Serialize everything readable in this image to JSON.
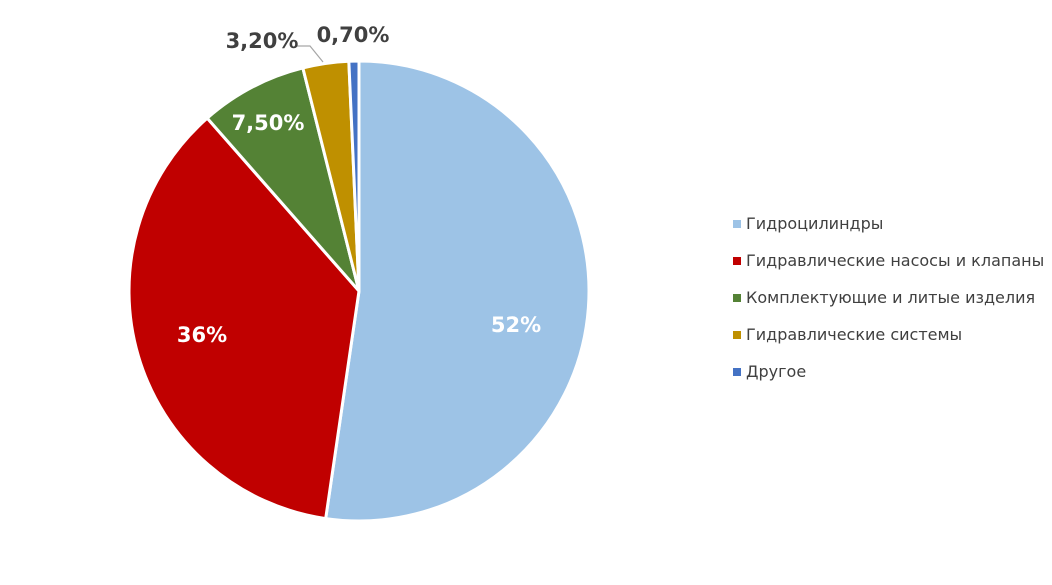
{
  "chart_data": {
    "type": "pie",
    "title": "",
    "slices": [
      {
        "name": "Гидроцилиндры",
        "value": 52,
        "label": "52%",
        "color": "#9dc3e6"
      },
      {
        "name": "Гидравлические насосы и клапаны",
        "value": 36,
        "label": "36%",
        "color": "#c00000"
      },
      {
        "name": "Комплектующие и литые изделия",
        "value": 7.5,
        "label": "7,50%",
        "color": "#548235"
      },
      {
        "name": "Гидравлические системы",
        "value": 3.2,
        "label": "3,20%",
        "color": "#bf9000"
      },
      {
        "name": "Другое",
        "value": 0.7,
        "label": "0,70%",
        "color": "#4472c4"
      }
    ],
    "legend_position": "right",
    "start_angle": "12 o'clock",
    "direction": "clockwise"
  }
}
